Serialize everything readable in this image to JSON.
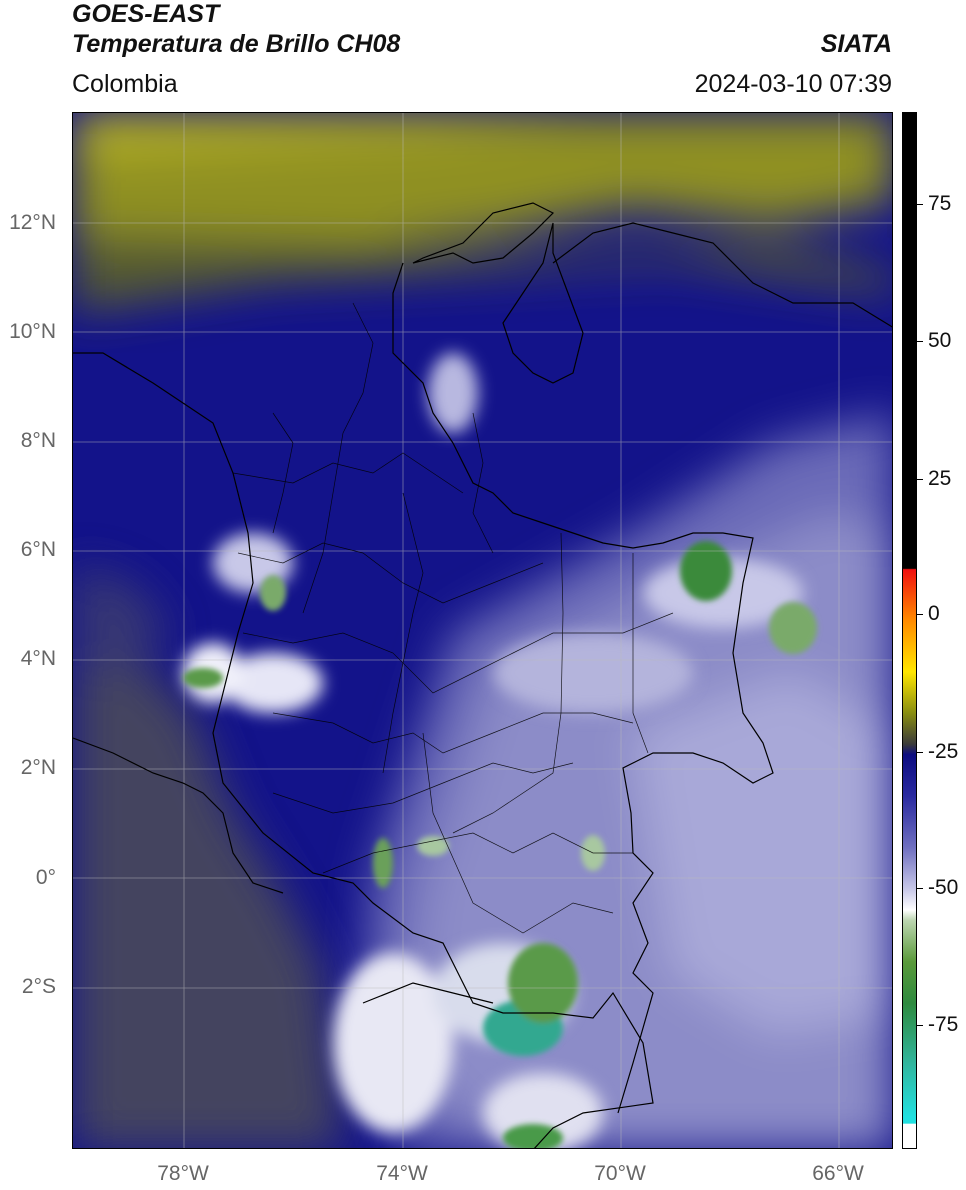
{
  "header": {
    "satellite": "GOES-EAST",
    "product": "Temperatura de Brillo CH08",
    "region": "Colombia",
    "organization": "SIATA",
    "datetime": "2024-03-10 07:39"
  },
  "axes": {
    "lat_labels": [
      "12°N",
      "10°N",
      "8°N",
      "6°N",
      "4°N",
      "2°N",
      "0°",
      "2°S"
    ],
    "lon_labels": [
      "78°W",
      "74°W",
      "70°W",
      "66°W"
    ]
  },
  "colorbar": {
    "labels": [
      "75",
      "50",
      "25",
      "0",
      "-25",
      "-50",
      "-75"
    ]
  },
  "colors": {
    "cold_blue": "#13138a",
    "warm_olive": "#8f9020",
    "convective_green": "#3a8a3a"
  }
}
